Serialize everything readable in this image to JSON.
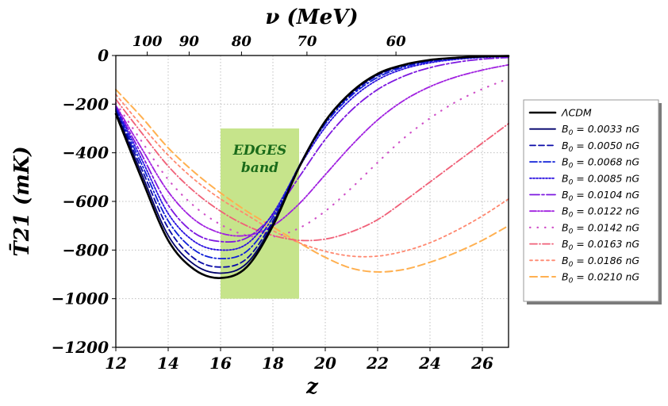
{
  "chart_data": {
    "type": "line",
    "xlabel": "z",
    "ylabel": "T̄21 (mK)",
    "top_axis_title": "ν (MeV)",
    "xlim": [
      12,
      27
    ],
    "ylim": [
      -1200,
      0
    ],
    "x_ticks": [
      {
        "value": 12,
        "label": "12"
      },
      {
        "value": 14,
        "label": "14"
      },
      {
        "value": 16,
        "label": "16"
      },
      {
        "value": 18,
        "label": "18"
      },
      {
        "value": 20,
        "label": "20"
      },
      {
        "value": 22,
        "label": "22"
      },
      {
        "value": 24,
        "label": "24"
      },
      {
        "value": 26,
        "label": "26"
      }
    ],
    "y_ticks": [
      {
        "value": 0,
        "label": "0"
      },
      {
        "value": -200,
        "label": "−200"
      },
      {
        "value": -400,
        "label": "−400"
      },
      {
        "value": -600,
        "label": "−600"
      },
      {
        "value": -800,
        "label": "−800"
      },
      {
        "value": -1000,
        "label": "−1000"
      },
      {
        "value": -1200,
        "label": "−1200"
      }
    ],
    "top_ticks": [
      {
        "z": 13.2,
        "label": "100"
      },
      {
        "z": 14.8,
        "label": "90"
      },
      {
        "z": 16.8,
        "label": "80"
      },
      {
        "z": 19.3,
        "label": "70"
      },
      {
        "z": 22.7,
        "label": "60"
      }
    ],
    "band": {
      "x_range": [
        16,
        19
      ],
      "y_range": [
        -1000,
        -300
      ],
      "line1": "EDGES",
      "line2": "band",
      "color": "#c6e48b"
    },
    "series": [
      {
        "name": "ΛCDM",
        "color": "#000000",
        "dash": "",
        "width": 2.6,
        "points": [
          [
            12,
            -240
          ],
          [
            13,
            -510
          ],
          [
            14,
            -760
          ],
          [
            15,
            -880
          ],
          [
            16,
            -915
          ],
          [
            17,
            -870
          ],
          [
            18,
            -700
          ],
          [
            19,
            -460
          ],
          [
            20,
            -270
          ],
          [
            21,
            -150
          ],
          [
            22,
            -75
          ],
          [
            23,
            -38
          ],
          [
            24,
            -18
          ],
          [
            25,
            -9
          ],
          [
            26,
            -4
          ],
          [
            27,
            -2
          ]
        ]
      },
      {
        "name": "B0 = 0.0033 nG",
        "color": "#00006b",
        "dash": "",
        "width": 1.8,
        "points": [
          [
            12,
            -230
          ],
          [
            13,
            -490
          ],
          [
            14,
            -740
          ],
          [
            15,
            -860
          ],
          [
            16,
            -895
          ],
          [
            17,
            -855
          ],
          [
            18,
            -690
          ],
          [
            19,
            -455
          ],
          [
            20,
            -270
          ],
          [
            21,
            -152
          ],
          [
            22,
            -78
          ],
          [
            23,
            -40
          ],
          [
            24,
            -20
          ],
          [
            25,
            -10
          ],
          [
            26,
            -5
          ],
          [
            27,
            -2
          ]
        ]
      },
      {
        "name": "B0 = 0.0050 nG",
        "color": "#0a0aa8",
        "dash": "7 4",
        "width": 1.8,
        "points": [
          [
            12,
            -225
          ],
          [
            13,
            -470
          ],
          [
            14,
            -710
          ],
          [
            15,
            -835
          ],
          [
            16,
            -870
          ],
          [
            17,
            -835
          ],
          [
            18,
            -680
          ],
          [
            19,
            -455
          ],
          [
            20,
            -275
          ],
          [
            21,
            -158
          ],
          [
            22,
            -82
          ],
          [
            23,
            -43
          ],
          [
            24,
            -22
          ],
          [
            25,
            -11
          ],
          [
            26,
            -5
          ],
          [
            27,
            -2
          ]
        ]
      },
      {
        "name": "B0 = 0.0068 nG",
        "color": "#1020d8",
        "dash": "9 3 2 3",
        "width": 1.8,
        "points": [
          [
            12,
            -220
          ],
          [
            13,
            -450
          ],
          [
            14,
            -680
          ],
          [
            15,
            -800
          ],
          [
            16,
            -835
          ],
          [
            17,
            -805
          ],
          [
            18,
            -665
          ],
          [
            19,
            -455
          ],
          [
            20,
            -282
          ],
          [
            21,
            -165
          ],
          [
            22,
            -90
          ],
          [
            23,
            -48
          ],
          [
            24,
            -25
          ],
          [
            25,
            -13
          ],
          [
            26,
            -6
          ],
          [
            27,
            -3
          ]
        ]
      },
      {
        "name": "B0 = 0.0085 nG",
        "color": "#2a10e0",
        "dash": "2 2",
        "width": 1.8,
        "points": [
          [
            12,
            -215
          ],
          [
            13,
            -430
          ],
          [
            14,
            -650
          ],
          [
            15,
            -765
          ],
          [
            16,
            -800
          ],
          [
            17,
            -775
          ],
          [
            18,
            -650
          ],
          [
            19,
            -460
          ],
          [
            20,
            -295
          ],
          [
            21,
            -178
          ],
          [
            22,
            -100
          ],
          [
            23,
            -55
          ],
          [
            24,
            -30
          ],
          [
            25,
            -16
          ],
          [
            26,
            -8
          ],
          [
            27,
            -4
          ]
        ]
      },
      {
        "name": "B0 = 0.0104 nG",
        "color": "#7d18e0",
        "dash": "12 3 3 3",
        "width": 1.8,
        "points": [
          [
            12,
            -210
          ],
          [
            13,
            -410
          ],
          [
            14,
            -615
          ],
          [
            15,
            -730
          ],
          [
            16,
            -765
          ],
          [
            17,
            -750
          ],
          [
            18,
            -655
          ],
          [
            19,
            -500
          ],
          [
            20,
            -345
          ],
          [
            21,
            -225
          ],
          [
            22,
            -140
          ],
          [
            23,
            -85
          ],
          [
            24,
            -50
          ],
          [
            25,
            -28
          ],
          [
            26,
            -15
          ],
          [
            27,
            -8
          ]
        ]
      },
      {
        "name": "B0 = 0.0122 nG",
        "color": "#a020e0",
        "dash": "8 2 2 2 2 2",
        "width": 1.8,
        "points": [
          [
            12,
            -205
          ],
          [
            13,
            -385
          ],
          [
            14,
            -560
          ],
          [
            15,
            -675
          ],
          [
            16,
            -730
          ],
          [
            17,
            -740
          ],
          [
            18,
            -700
          ],
          [
            19,
            -610
          ],
          [
            20,
            -490
          ],
          [
            21,
            -370
          ],
          [
            22,
            -265
          ],
          [
            23,
            -185
          ],
          [
            24,
            -128
          ],
          [
            25,
            -88
          ],
          [
            26,
            -60
          ],
          [
            27,
            -38
          ]
        ]
      },
      {
        "name": "B0 = 0.0142 nG",
        "color": "#d050c8",
        "dash": "0.5 9",
        "width": 2.2,
        "points": [
          [
            12,
            -195
          ],
          [
            13,
            -355
          ],
          [
            14,
            -510
          ],
          [
            15,
            -620
          ],
          [
            16,
            -695
          ],
          [
            17,
            -740
          ],
          [
            18,
            -745
          ],
          [
            19,
            -710
          ],
          [
            20,
            -640
          ],
          [
            21,
            -545
          ],
          [
            22,
            -440
          ],
          [
            23,
            -340
          ],
          [
            24,
            -258
          ],
          [
            25,
            -190
          ],
          [
            26,
            -138
          ],
          [
            27,
            -95
          ]
        ]
      },
      {
        "name": "B0 = 0.0163 nG",
        "color": "#f06078",
        "dash": "9 3 1 3",
        "width": 1.8,
        "points": [
          [
            12,
            -180
          ],
          [
            13,
            -320
          ],
          [
            14,
            -455
          ],
          [
            15,
            -560
          ],
          [
            16,
            -640
          ],
          [
            17,
            -700
          ],
          [
            18,
            -740
          ],
          [
            19,
            -760
          ],
          [
            20,
            -755
          ],
          [
            21,
            -725
          ],
          [
            22,
            -675
          ],
          [
            23,
            -600
          ],
          [
            24,
            -520
          ],
          [
            25,
            -440
          ],
          [
            26,
            -360
          ],
          [
            27,
            -280
          ]
        ]
      },
      {
        "name": "B0 = 0.0186 nG",
        "color": "#ff8870",
        "dash": "3 4",
        "width": 1.8,
        "points": [
          [
            12,
            -160
          ],
          [
            13,
            -290
          ],
          [
            14,
            -410
          ],
          [
            15,
            -510
          ],
          [
            16,
            -590
          ],
          [
            17,
            -655
          ],
          [
            18,
            -720
          ],
          [
            19,
            -770
          ],
          [
            20,
            -805
          ],
          [
            21,
            -825
          ],
          [
            22,
            -825
          ],
          [
            23,
            -805
          ],
          [
            24,
            -770
          ],
          [
            25,
            -720
          ],
          [
            26,
            -660
          ],
          [
            27,
            -590
          ]
        ]
      },
      {
        "name": "B0 = 0.0210 nG",
        "color": "#ffb050",
        "dash": "9 5",
        "width": 2.0,
        "points": [
          [
            12,
            -140
          ],
          [
            13,
            -255
          ],
          [
            14,
            -380
          ],
          [
            15,
            -480
          ],
          [
            16,
            -565
          ],
          [
            17,
            -640
          ],
          [
            18,
            -705
          ],
          [
            19,
            -770
          ],
          [
            20,
            -830
          ],
          [
            21,
            -875
          ],
          [
            22,
            -890
          ],
          [
            23,
            -880
          ],
          [
            24,
            -850
          ],
          [
            25,
            -810
          ],
          [
            26,
            -760
          ],
          [
            27,
            -700
          ]
        ]
      }
    ],
    "legend": {
      "position": "right",
      "entries": [
        {
          "prefix": "ΛCDM",
          "value": "",
          "unit": ""
        },
        {
          "prefix": "B0",
          "value": "= 0.0033",
          "unit": "nG"
        },
        {
          "prefix": "B0",
          "value": "= 0.0050",
          "unit": "nG"
        },
        {
          "prefix": "B0",
          "value": "= 0.0068",
          "unit": "nG"
        },
        {
          "prefix": "B0",
          "value": "= 0.0085",
          "unit": "nG"
        },
        {
          "prefix": "B0",
          "value": "= 0.0104",
          "unit": "nG"
        },
        {
          "prefix": "B0",
          "value": "= 0.0122",
          "unit": "nG"
        },
        {
          "prefix": "B0",
          "value": "= 0.0142",
          "unit": "nG"
        },
        {
          "prefix": "B0",
          "value": "= 0.0163",
          "unit": "nG"
        },
        {
          "prefix": "B0",
          "value": "= 0.0186",
          "unit": "nG"
        },
        {
          "prefix": "B0",
          "value": "= 0.0210",
          "unit": "nG"
        }
      ]
    }
  }
}
